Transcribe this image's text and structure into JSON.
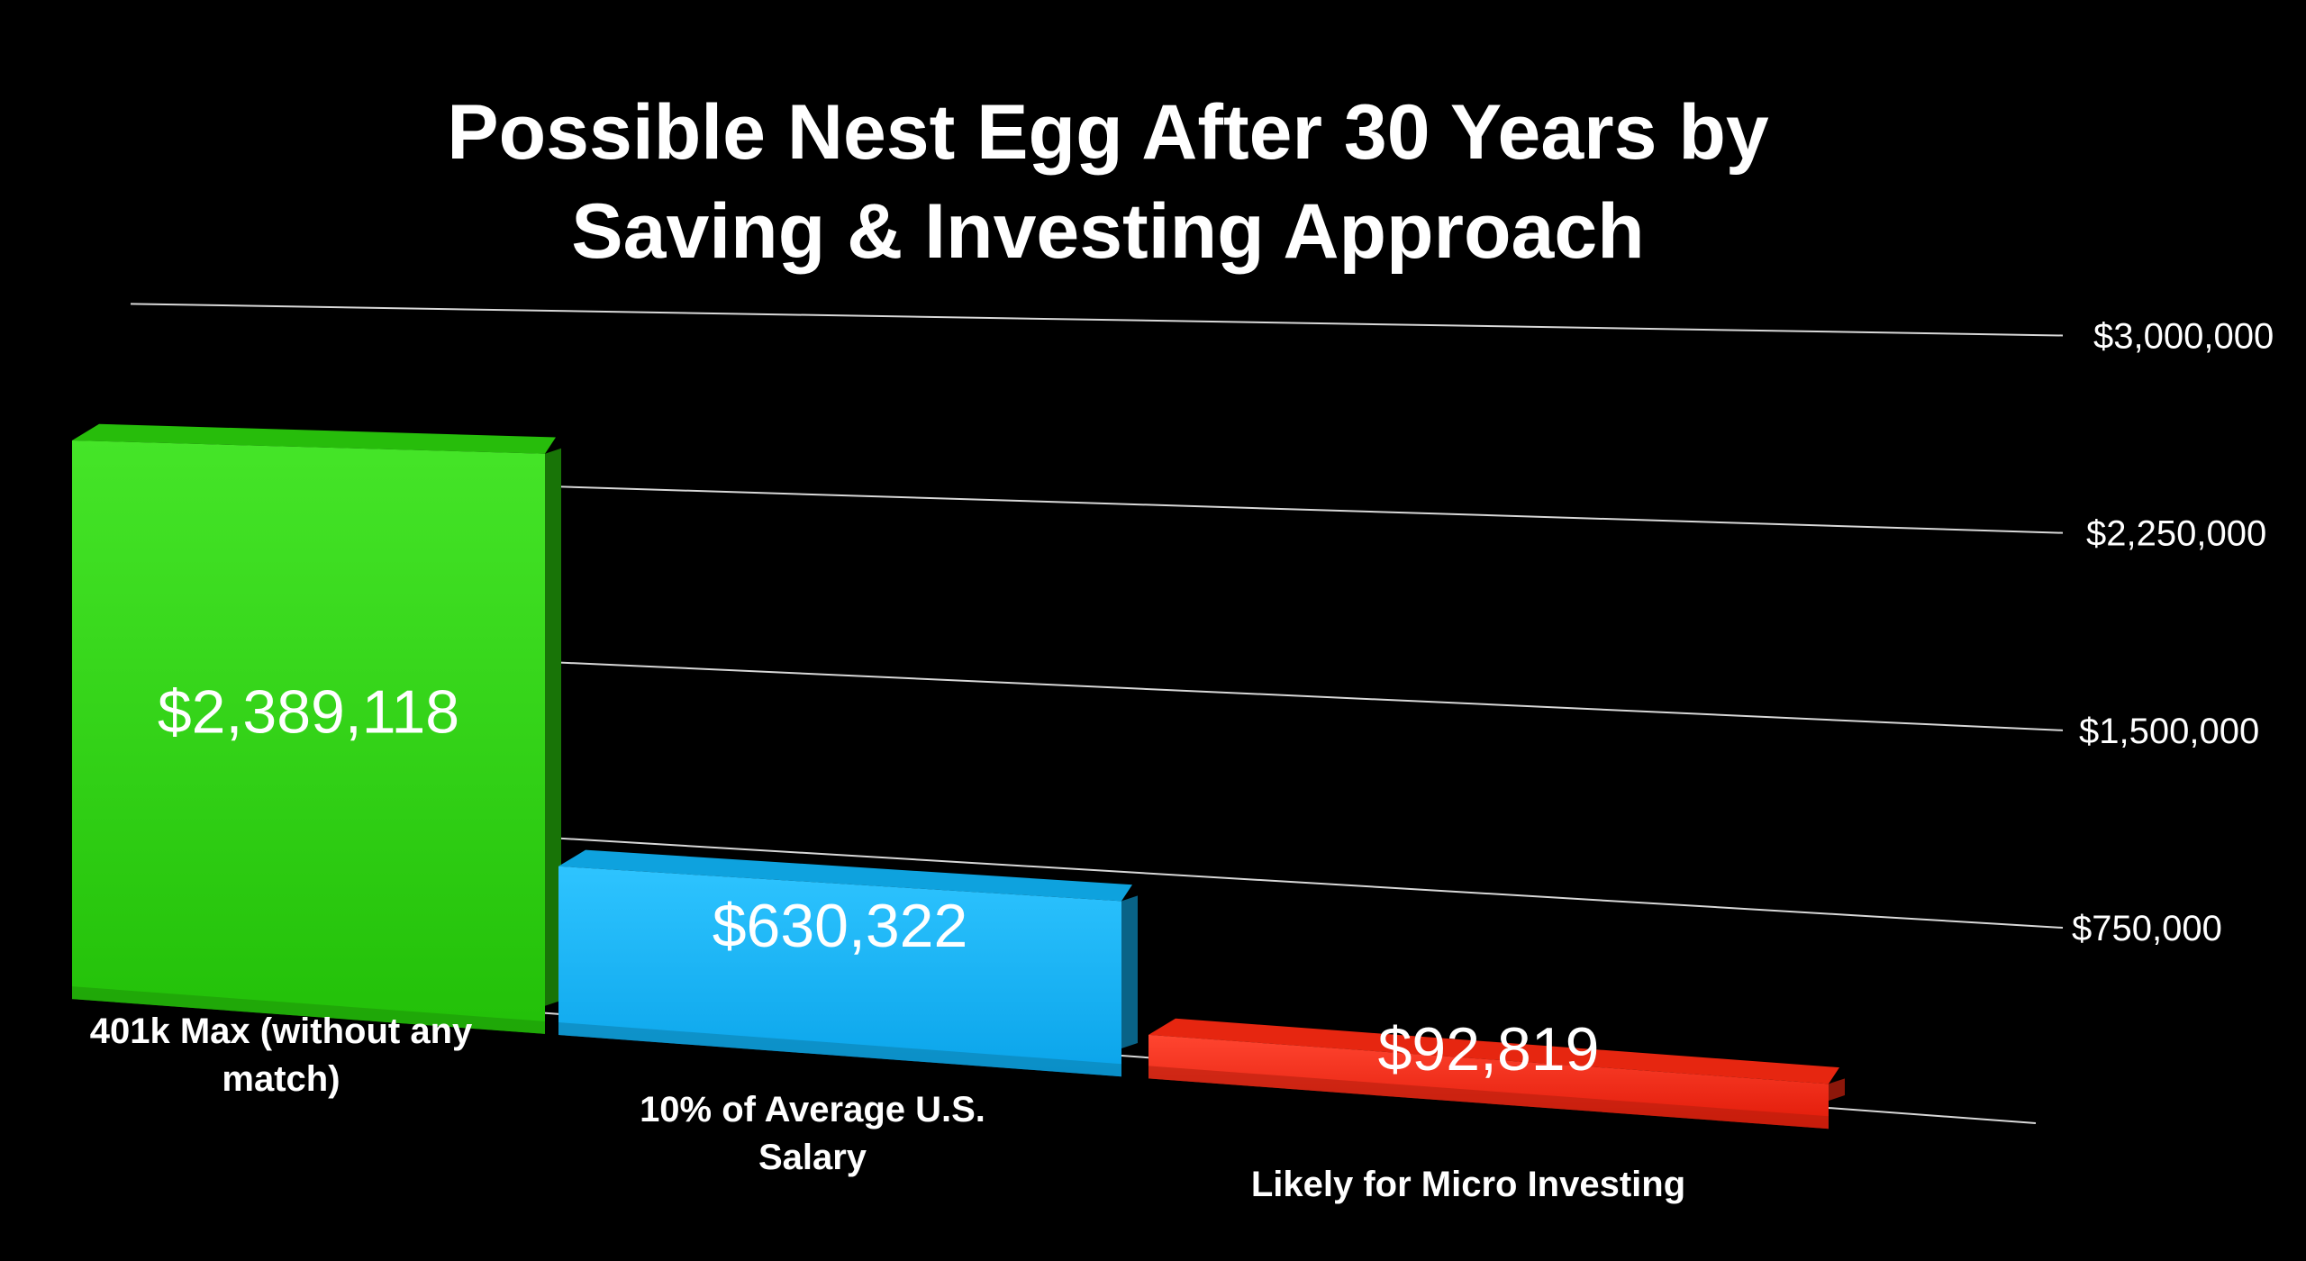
{
  "chart_data": {
    "type": "bar",
    "title_lines": [
      "Possible Nest Egg After 30 Years by",
      "Saving & Investing Approach"
    ],
    "categories": [
      "401k Max (without any match)",
      "10% of Average U.S. Salary",
      "Likely for Micro Investing"
    ],
    "category_label_lines": [
      [
        "401k Max (without any",
        "match)"
      ],
      [
        "10% of Average U.S.",
        "Salary"
      ],
      [
        "Likely for Micro Investing"
      ]
    ],
    "values": [
      2389118,
      630322,
      92819
    ],
    "data_labels": [
      "$2,389,118",
      "$630,322",
      "$92,819"
    ],
    "colors": [
      "#2bd20c",
      "#10b4f6",
      "#ff2a12"
    ],
    "ylim": [
      0,
      3000000
    ],
    "y_ticks": [
      750000,
      1500000,
      2250000,
      3000000
    ],
    "y_tick_labels": [
      "$750,000",
      "$1,500,000",
      "$2,250,000",
      "$3,000,000"
    ],
    "grid": true,
    "axis_position": "right",
    "background": "#000000",
    "xlabel": "",
    "ylabel": ""
  }
}
